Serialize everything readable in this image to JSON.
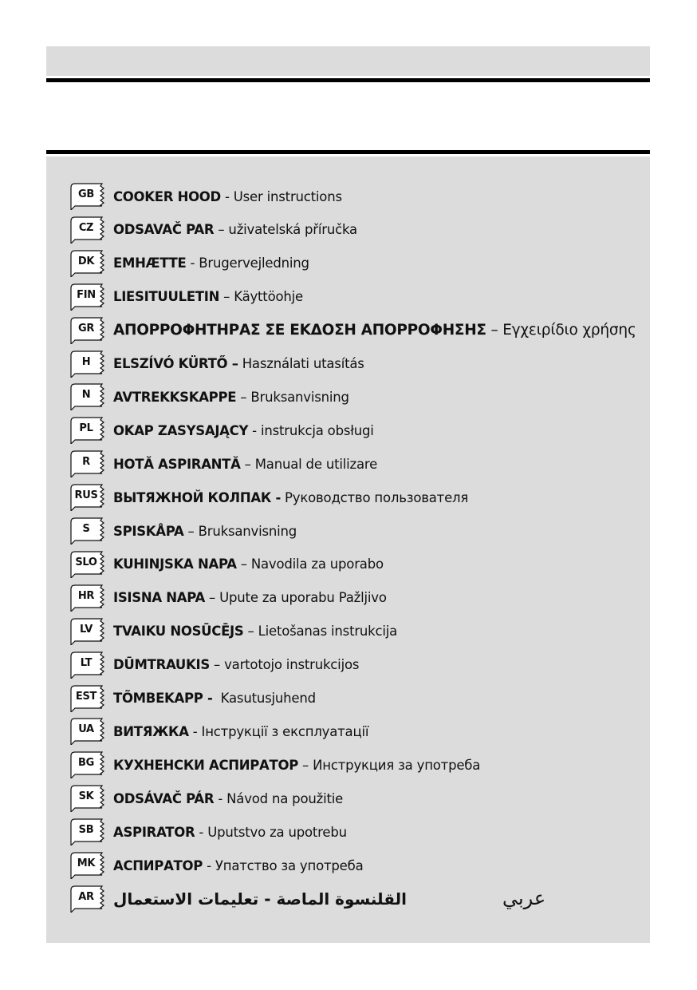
{
  "entries": [
    {
      "code": "GB",
      "name": "COOKER HOOD",
      "desc": " - User instructions"
    },
    {
      "code": "CZ",
      "name": "ODSAVAČ PAR",
      "desc": " – uživatelská příručka"
    },
    {
      "code": "DK",
      "name": "EMHÆTTE",
      "desc": " - Brugervejledning"
    },
    {
      "code": "FIN",
      "name": "LIESITUULETIN",
      "desc": " – Käyttöohje"
    },
    {
      "code": "GR",
      "name": "ΑΠΟΡΡΟΦΗΤΗΡΑΣ ΣΕ ΕΚΔΟΣΗ ΑΠΟΡΡΟΦΗΣΗΣ",
      "desc": " – Εγχειρίδιο χρήσης"
    },
    {
      "code": "H",
      "name": "ELSZÍVÓ KÜRTŐ –",
      "desc": " Használati utasítás"
    },
    {
      "code": "N",
      "name": "AVTREKKSKAPPE",
      "desc": " – Bruksanvisning"
    },
    {
      "code": "PL",
      "name": "OKAP ZASYSAJĄCY",
      "desc": " - instrukcja obsługi"
    },
    {
      "code": "R",
      "name": "HOTĂ ASPIRANTĂ",
      "desc": " – Manual de utilizare"
    },
    {
      "code": "RUS",
      "name": "ВЫТЯЖНОЙ КОЛПАК -",
      "desc": " Руководство пользователя"
    },
    {
      "code": "S",
      "name": "SPISKÅPA",
      "desc": " – Bruksanvisning"
    },
    {
      "code": "SLO",
      "name": "KUHINJSKA NAPA",
      "desc": " – Navodila za uporabo"
    },
    {
      "code": "HR",
      "name": "ISISNA NAPA",
      "desc": " – Upute za uporabu Pažljivo"
    },
    {
      "code": "LV",
      "name": "TVAIKU NOSŪCĒJS",
      "desc": " – Lietošanas instrukcija"
    },
    {
      "code": "LT",
      "name": "DŪMTRAUKIS",
      "desc": " – vartotojo instrukcijos"
    },
    {
      "code": "EST",
      "name": "TÕMBEKAPP -",
      "desc": "  Kasutusjuhend"
    },
    {
      "code": "UA",
      "name": "ВИТЯЖКА",
      "desc": " - Інструкції з експлуатації"
    },
    {
      "code": "BG",
      "name": "КУХНЕНСКИ АСПИРАТОР",
      "desc": " – Инструкция за употреба"
    },
    {
      "code": "SK",
      "name": "ODSÁVAČ PÁR",
      "desc": " - Návod na použitie"
    },
    {
      "code": "SB",
      "name": "ASPIRATOR",
      "desc": " - Uputstvo za upotrebu"
    },
    {
      "code": "MK",
      "name": "АСПИРАТОР",
      "desc": " - Упатство за употреба"
    }
  ],
  "arabic": {
    "code": "AR",
    "text": "القلنسوة الماصة - تعليمات الاستعمال",
    "label": "عربي"
  }
}
